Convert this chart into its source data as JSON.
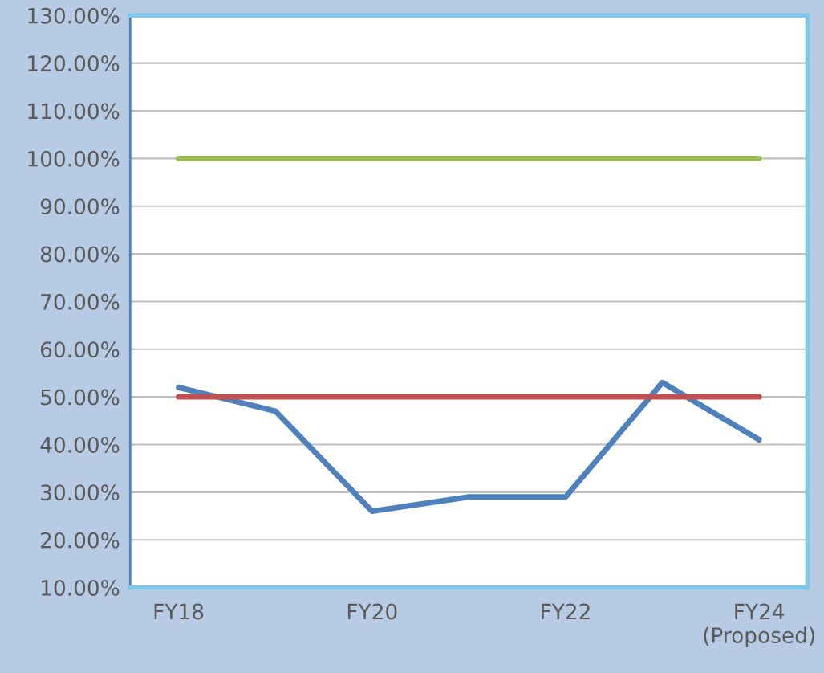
{
  "chart_data": {
    "type": "line",
    "categories": [
      "FY18",
      null,
      "FY20",
      null,
      "FY22",
      null,
      "FY24\n(Proposed)"
    ],
    "series": [
      {
        "color": "#4f81bd",
        "values": [
          52,
          47,
          26,
          29,
          29,
          53,
          41
        ]
      },
      {
        "color": "#c0504d",
        "values": [
          50,
          50,
          50,
          50,
          50,
          50,
          50
        ]
      },
      {
        "color": "#9bbb59",
        "values": [
          100,
          100,
          100,
          100,
          100,
          100,
          100
        ]
      }
    ],
    "ylim": [
      10,
      130
    ],
    "yticks": [
      {
        "value": 10,
        "label": "10.00%"
      },
      {
        "value": 20,
        "label": "20.00%"
      },
      {
        "value": 30,
        "label": "30.00%"
      },
      {
        "value": 40,
        "label": "40.00%"
      },
      {
        "value": 50,
        "label": "50.00%"
      },
      {
        "value": 60,
        "label": "60.00%"
      },
      {
        "value": 70,
        "label": "70.00%"
      },
      {
        "value": 80,
        "label": "80.00%"
      },
      {
        "value": 90,
        "label": "90.00%"
      },
      {
        "value": 100,
        "label": "100.00%"
      },
      {
        "value": 110,
        "label": "110.00%"
      },
      {
        "value": 120,
        "label": "120.00%"
      },
      {
        "value": 130,
        "label": "130.00%"
      }
    ],
    "grid": "y",
    "legend": false,
    "marker": "none",
    "line_style": "solid"
  }
}
